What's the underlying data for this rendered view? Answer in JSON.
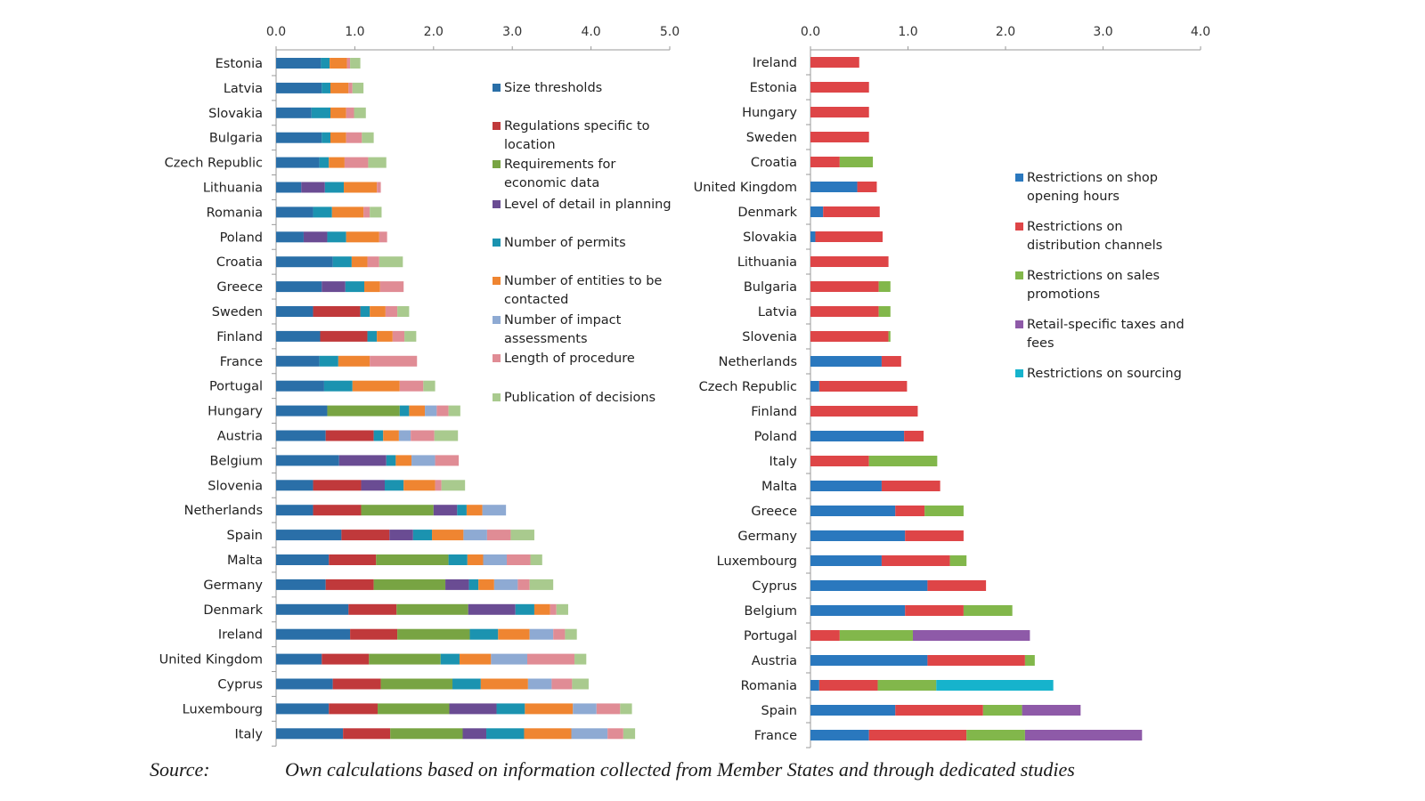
{
  "source": {
    "label": "Source:",
    "text": "Own calculations based on information collected from Member States and through dedicated studies"
  },
  "chart_data": [
    {
      "type": "bar",
      "orientation": "horizontal",
      "stacked": true,
      "title": "",
      "xlabel": "",
      "ylabel": "",
      "xlim": [
        0,
        5
      ],
      "xticks": [
        "0.0",
        "1.0",
        "2.0",
        "3.0",
        "4.0",
        "5.0"
      ],
      "legend_position": "right-inside",
      "categories": [
        "Estonia",
        "Latvia",
        "Slovakia",
        "Bulgaria",
        "Czech Republic",
        "Lithuania",
        "Romania",
        "Poland",
        "Croatia",
        "Greece",
        "Sweden",
        "Finland",
        "France",
        "Portugal",
        "Hungary",
        "Austria",
        "Belgium",
        "Slovenia",
        "Netherlands",
        "Spain",
        "Malta",
        "Germany",
        "Denmark",
        "Ireland",
        "United Kingdom",
        "Cyprus",
        "Luxembourg",
        "Italy"
      ],
      "series": [
        {
          "name": "Size thresholds",
          "color": "#2a6fa8",
          "values": [
            0.57,
            0.58,
            0.45,
            0.58,
            0.55,
            0.32,
            0.47,
            0.35,
            0.72,
            0.58,
            0.47,
            0.56,
            0.55,
            0.61,
            0.65,
            0.63,
            0.8,
            0.47,
            0.47,
            0.83,
            0.67,
            0.63,
            0.92,
            0.94,
            0.58,
            0.72,
            0.67,
            0.85
          ]
        },
        {
          "name": "Regulations specific to location",
          "color": "#c0393b",
          "values": [
            0,
            0,
            0,
            0,
            0,
            0,
            0,
            0,
            0,
            0,
            0.6,
            0.6,
            0,
            0,
            0,
            0.61,
            0,
            0.61,
            0.61,
            0.61,
            0.6,
            0.61,
            0.61,
            0.6,
            0.6,
            0.61,
            0.62,
            0.6
          ]
        },
        {
          "name": "Requirements for economic data",
          "color": "#78a443",
          "values": [
            0,
            0,
            0,
            0,
            0,
            0,
            0,
            0,
            0,
            0,
            0,
            0,
            0,
            0,
            0.92,
            0,
            0,
            0,
            0.92,
            0,
            0.92,
            0.91,
            0.91,
            0.92,
            0.91,
            0.91,
            0.91,
            0.92
          ]
        },
        {
          "name": "Level of detail in planning",
          "color": "#6a4c93",
          "values": [
            0,
            0,
            0,
            0,
            0,
            0.3,
            0,
            0.3,
            0,
            0.3,
            0,
            0,
            0,
            0,
            0,
            0,
            0.6,
            0.3,
            0.3,
            0.3,
            0,
            0.3,
            0.6,
            0,
            0,
            0,
            0.6,
            0.3
          ]
        },
        {
          "name": "Number of permits",
          "color": "#1b93b0",
          "values": [
            0.11,
            0.11,
            0.24,
            0.11,
            0.12,
            0.24,
            0.24,
            0.24,
            0.24,
            0.24,
            0.12,
            0.12,
            0.24,
            0.36,
            0.12,
            0.12,
            0.12,
            0.24,
            0.12,
            0.24,
            0.24,
            0.12,
            0.24,
            0.36,
            0.24,
            0.36,
            0.36,
            0.48
          ]
        },
        {
          "name": "Number of entities to be contacted",
          "color": "#ef8531",
          "values": [
            0.22,
            0.23,
            0.2,
            0.2,
            0.2,
            0.42,
            0.4,
            0.42,
            0.2,
            0.2,
            0.2,
            0.2,
            0.4,
            0.6,
            0.2,
            0.2,
            0.2,
            0.4,
            0.2,
            0.4,
            0.2,
            0.2,
            0.2,
            0.4,
            0.4,
            0.6,
            0.61,
            0.6
          ]
        },
        {
          "name": "Number of impact assessments",
          "color": "#8eaad3",
          "values": [
            0,
            0,
            0,
            0,
            0,
            0,
            0,
            0,
            0,
            0,
            0,
            0,
            0,
            0,
            0.15,
            0.15,
            0.3,
            0,
            0.3,
            0.3,
            0.3,
            0.3,
            0,
            0.3,
            0.46,
            0.3,
            0.3,
            0.46
          ]
        },
        {
          "name": "Length of procedure",
          "color": "#e08c95",
          "values": [
            0.04,
            0.05,
            0.1,
            0.2,
            0.3,
            0.05,
            0.08,
            0.1,
            0.15,
            0.3,
            0.15,
            0.15,
            0.6,
            0.3,
            0.15,
            0.3,
            0.3,
            0.08,
            0,
            0.3,
            0.3,
            0.15,
            0.08,
            0.15,
            0.6,
            0.26,
            0.3,
            0.2
          ]
        },
        {
          "name": "Publication of decisions",
          "color": "#a9ca8e",
          "values": [
            0.13,
            0.14,
            0.15,
            0.15,
            0.23,
            0,
            0.15,
            0,
            0.3,
            0,
            0.15,
            0.15,
            0,
            0.15,
            0.15,
            0.3,
            0,
            0.3,
            0,
            0.3,
            0.15,
            0.3,
            0.15,
            0.15,
            0.15,
            0.21,
            0.15,
            0.15
          ]
        }
      ]
    },
    {
      "type": "bar",
      "orientation": "horizontal",
      "stacked": true,
      "title": "",
      "xlabel": "",
      "ylabel": "",
      "xlim": [
        0,
        4
      ],
      "xticks": [
        "0.0",
        "1.0",
        "2.0",
        "3.0",
        "4.0"
      ],
      "legend_position": "right-inside",
      "categories": [
        "Ireland",
        "Estonia",
        "Hungary",
        "Sweden",
        "Croatia",
        "United Kingdom",
        "Denmark",
        "Slovakia",
        "Lithuania",
        "Bulgaria",
        "Latvia",
        "Slovenia",
        "Netherlands",
        "Czech Republic",
        "Finland",
        "Poland",
        "Italy",
        "Malta",
        "Greece",
        "Germany",
        "Luxembourg",
        "Cyprus",
        "Belgium",
        "Portugal",
        "Austria",
        "Romania",
        "Spain",
        "France"
      ],
      "series": [
        {
          "name": "Restrictions on shop opening hours",
          "color": "#2a78be",
          "values": [
            0,
            0,
            0,
            0,
            0,
            0.48,
            0.13,
            0.05,
            0,
            0,
            0,
            0,
            0.73,
            0.09,
            0,
            0.96,
            0,
            0.73,
            0.87,
            0.97,
            0.73,
            1.2,
            0.97,
            0,
            1.2,
            0.09,
            0.87,
            0.6
          ]
        },
        {
          "name": "Restrictions on distribution channels",
          "color": "#de4547",
          "values": [
            0.5,
            0.6,
            0.6,
            0.6,
            0.3,
            0.2,
            0.58,
            0.69,
            0.8,
            0.7,
            0.7,
            0.8,
            0.2,
            0.9,
            1.1,
            0.2,
            0.6,
            0.6,
            0.3,
            0.6,
            0.7,
            0.6,
            0.6,
            0.3,
            1.0,
            0.6,
            0.9,
            1.0
          ]
        },
        {
          "name": "Restrictions on sales promotions",
          "color": "#82b74b",
          "values": [
            0,
            0,
            0,
            0,
            0.34,
            0,
            0,
            0,
            0,
            0.12,
            0.12,
            0.02,
            0,
            0,
            0,
            0,
            0.7,
            0,
            0.4,
            0,
            0.17,
            0,
            0.5,
            0.75,
            0.1,
            0.6,
            0.4,
            0.6
          ]
        },
        {
          "name": "Retail-specific taxes and fees",
          "color": "#8e5aa8",
          "values": [
            0,
            0,
            0,
            0,
            0,
            0,
            0,
            0,
            0,
            0,
            0,
            0,
            0,
            0,
            0,
            0,
            0,
            0,
            0,
            0,
            0,
            0,
            0,
            1.2,
            0,
            0,
            0.6,
            1.2
          ]
        },
        {
          "name": "Restrictions on sourcing",
          "color": "#16b3cc",
          "values": [
            0,
            0,
            0,
            0,
            0,
            0,
            0,
            0,
            0,
            0,
            0,
            0,
            0,
            0,
            0,
            0,
            0,
            0,
            0,
            0,
            0,
            0,
            0,
            0,
            0,
            1.2,
            0,
            0
          ]
        }
      ]
    }
  ]
}
